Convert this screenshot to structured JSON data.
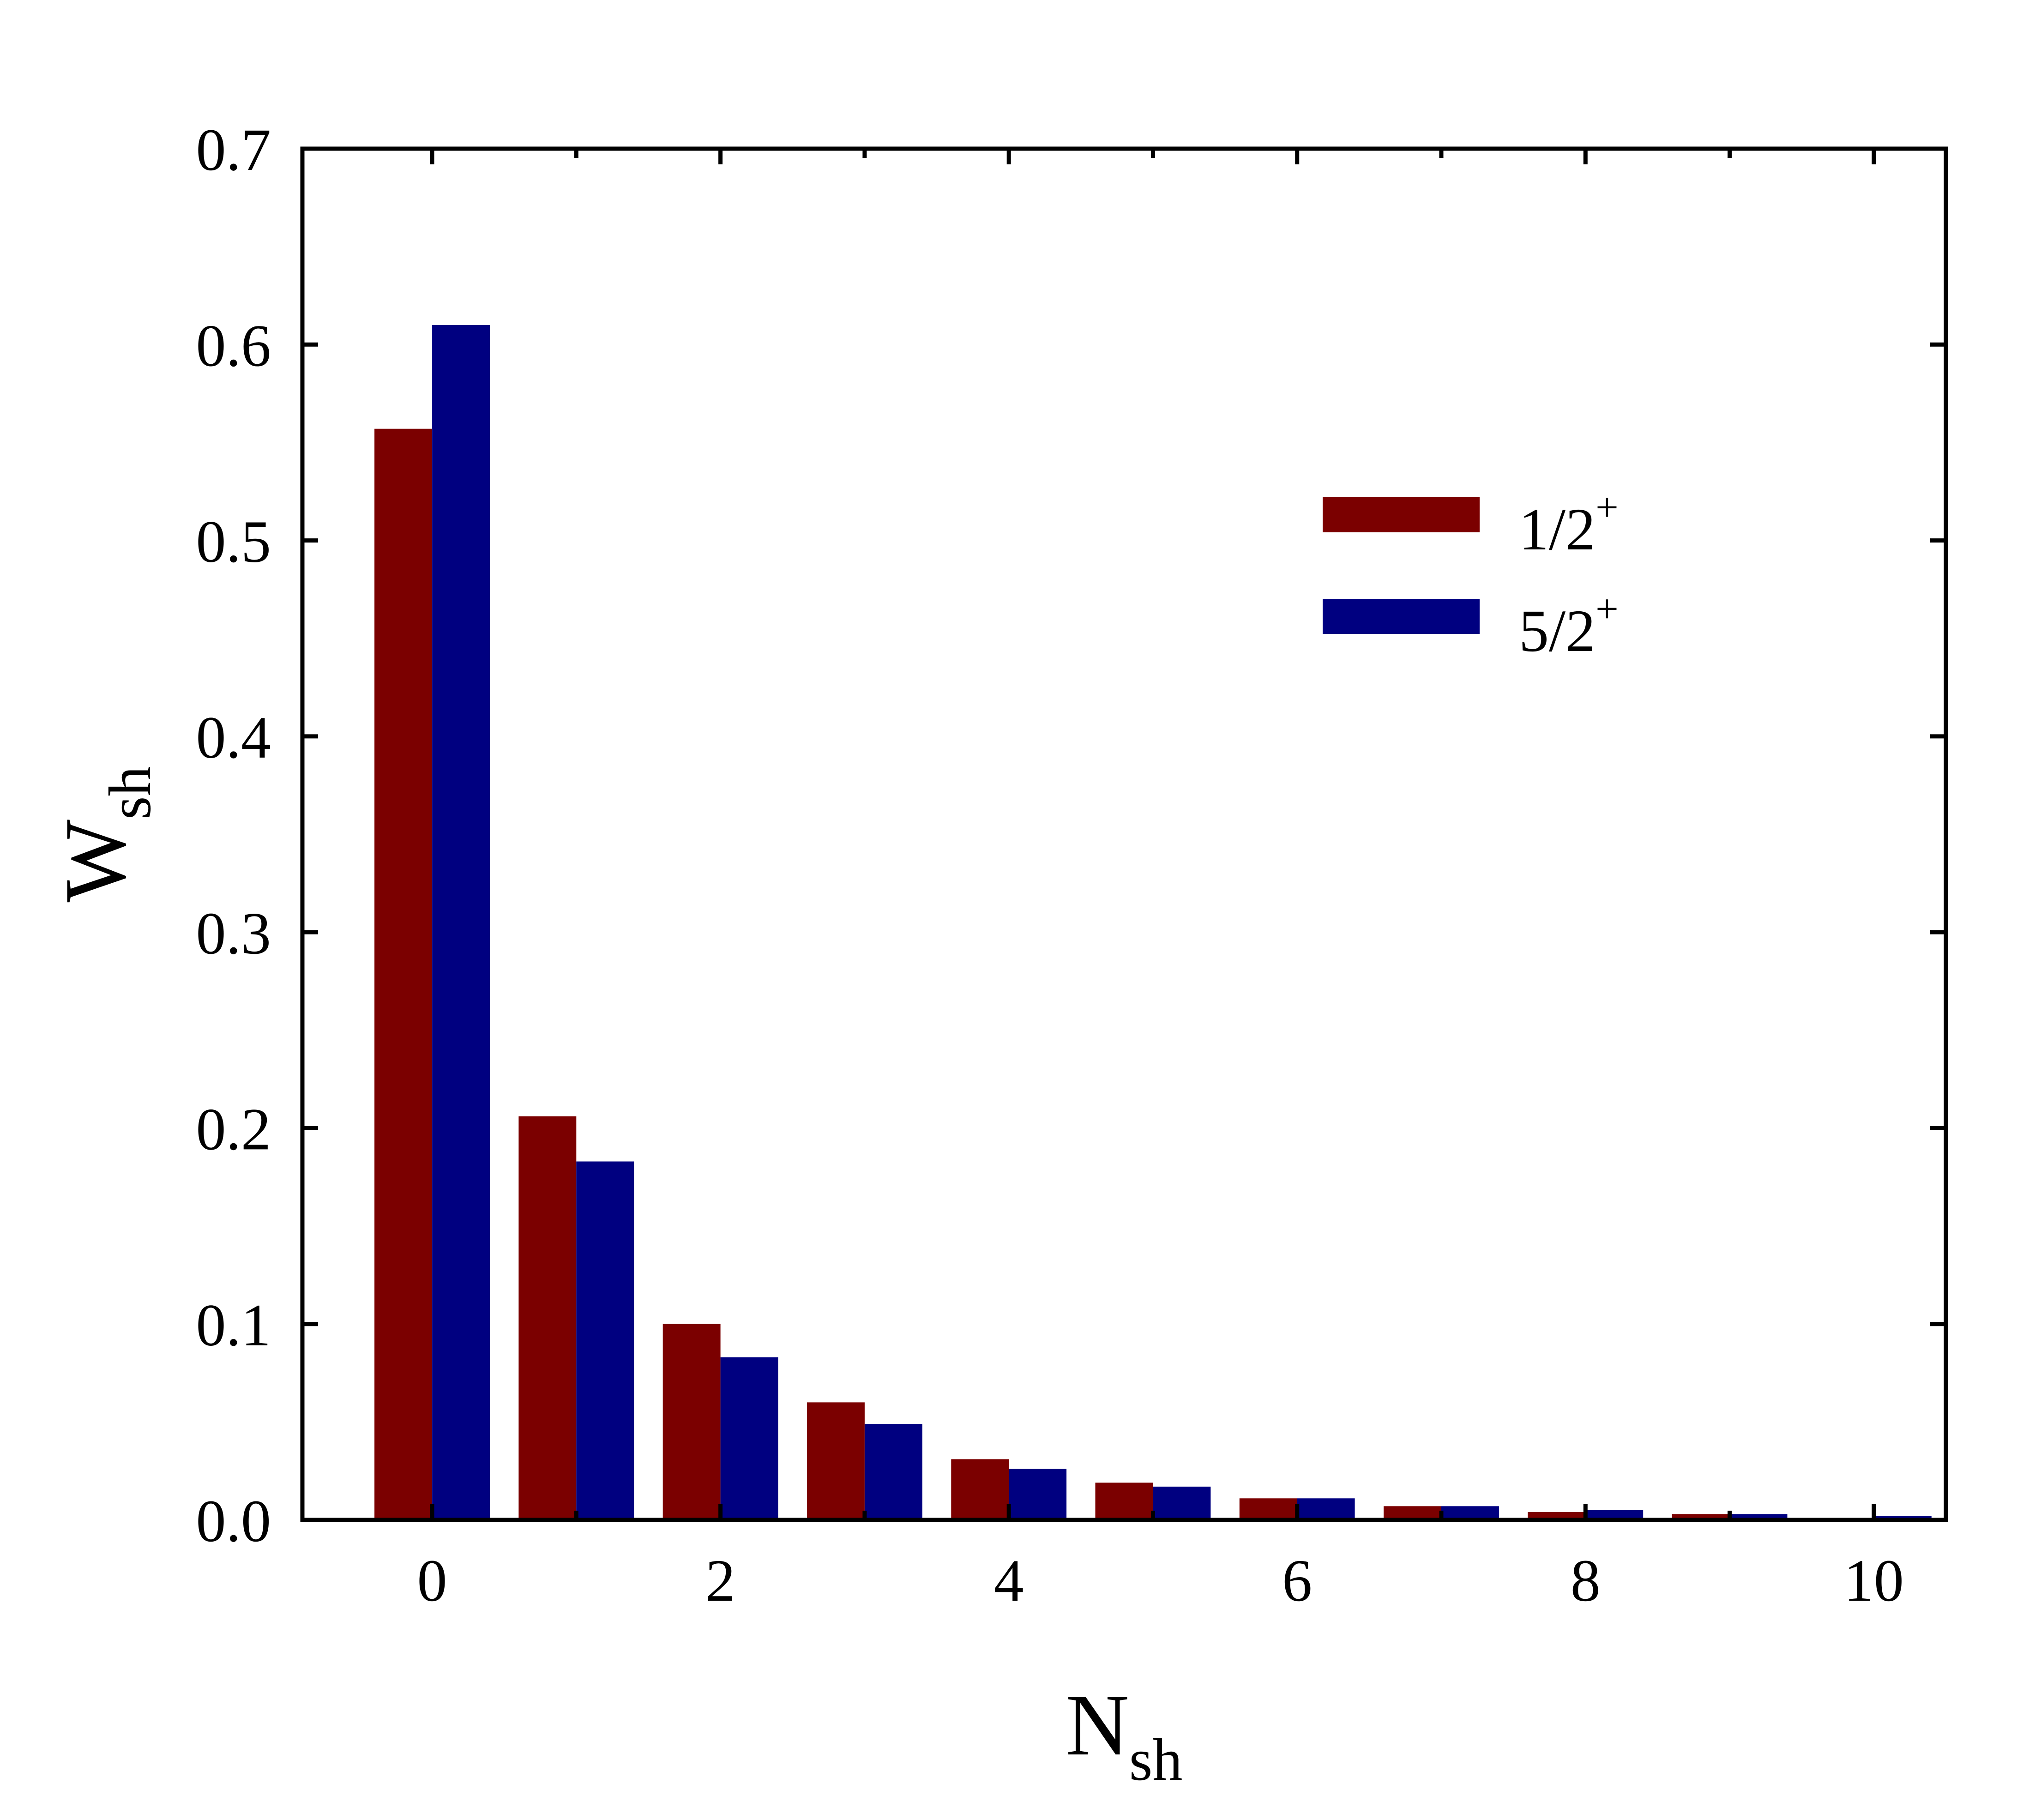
{
  "chart_data": {
    "type": "bar",
    "x_axis": {
      "label_main": "N",
      "label_sub": "sh",
      "range": [
        -0.9,
        10.5
      ],
      "major_ticks": [
        0,
        2,
        4,
        6,
        8,
        10
      ],
      "tick_labels": [
        "0",
        "2",
        "4",
        "6",
        "8",
        "10"
      ],
      "minor_ticks": [
        1,
        3,
        5,
        7,
        9
      ]
    },
    "y_axis": {
      "label_main": "W",
      "label_sub": "sh",
      "range": [
        0,
        0.7
      ],
      "major_ticks": [
        0.0,
        0.1,
        0.2,
        0.3,
        0.4,
        0.5,
        0.6,
        0.7
      ],
      "tick_labels": [
        "0.0",
        "0.1",
        "0.2",
        "0.3",
        "0.4",
        "0.5",
        "0.6",
        "0.7"
      ]
    },
    "categories": [
      0,
      1,
      2,
      3,
      4,
      5,
      6,
      7,
      8,
      9,
      10
    ],
    "series": [
      {
        "name": "1/2",
        "name_sup": "+",
        "color": "#7b0000",
        "values": [
          0.557,
          0.206,
          0.1,
          0.06,
          0.031,
          0.019,
          0.011,
          0.007,
          0.004,
          0.003,
          0.001
        ]
      },
      {
        "name": "5/2",
        "name_sup": "+",
        "color": "#000080",
        "values": [
          0.61,
          0.183,
          0.083,
          0.049,
          0.026,
          0.017,
          0.011,
          0.007,
          0.005,
          0.003,
          0.002
        ]
      }
    ],
    "legend_position": "top-right",
    "grid": false
  }
}
